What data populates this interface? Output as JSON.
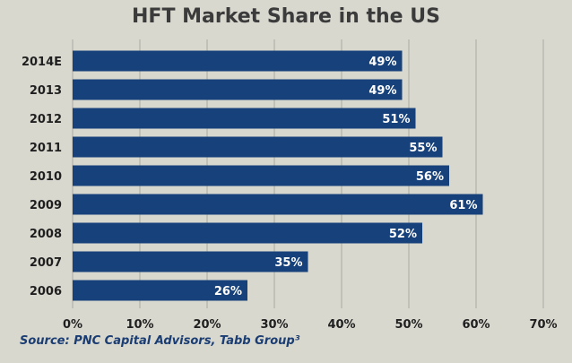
{
  "chart_data": {
    "type": "bar",
    "orientation": "horizontal",
    "title": "HFT Market Share in the US",
    "source": "Source: PNC Capital Advisors, Tabb Group³",
    "categories": [
      "2014E",
      "2013",
      "2012",
      "2011",
      "2010",
      "2009",
      "2008",
      "2007",
      "2006"
    ],
    "values": [
      49,
      49,
      51,
      55,
      56,
      61,
      52,
      35,
      26
    ],
    "value_labels": [
      "49%",
      "49%",
      "51%",
      "55%",
      "56%",
      "61%",
      "52%",
      "35%",
      "26%"
    ],
    "xlim": [
      0,
      70
    ],
    "x_ticks": [
      0,
      10,
      20,
      30,
      40,
      50,
      60,
      70
    ],
    "x_tick_labels": [
      "0%",
      "10%",
      "20%",
      "30%",
      "40%",
      "50%",
      "60%",
      "70%"
    ],
    "grid": "vertical",
    "bar_color": "#17417a",
    "background_color": "#d9d8cf"
  }
}
